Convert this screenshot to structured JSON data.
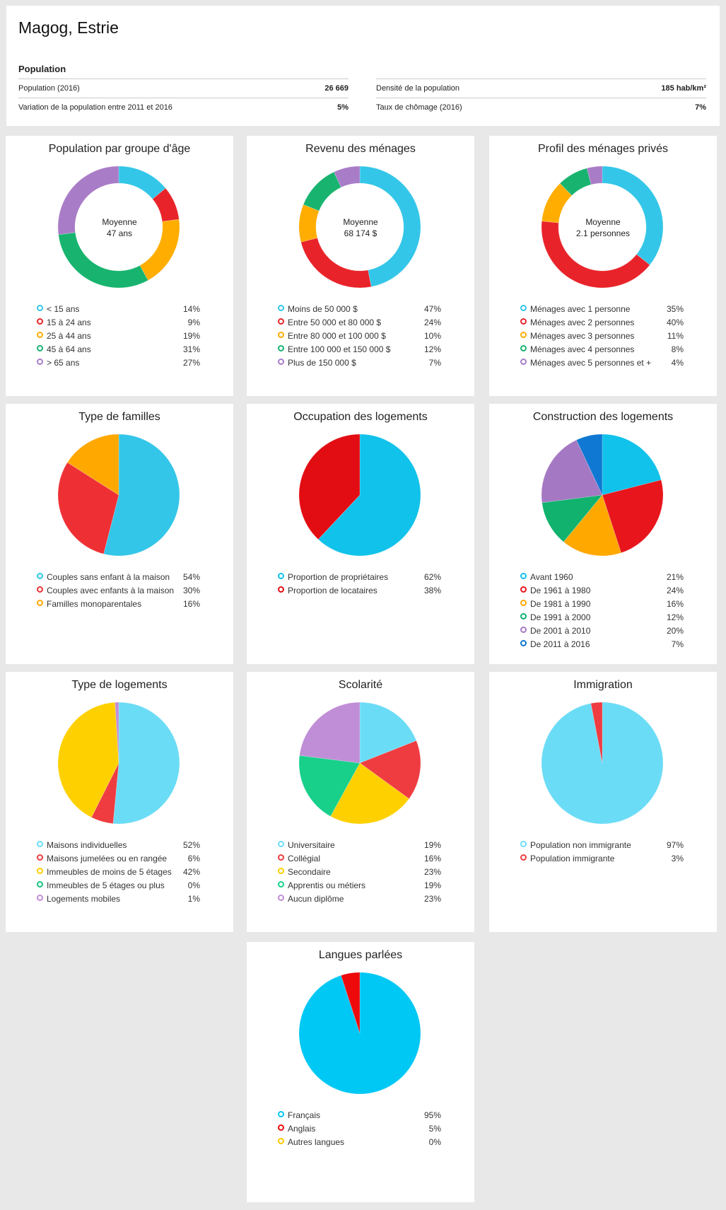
{
  "header": {
    "title": "Magog, Estrie",
    "section": "Population",
    "stats_left": [
      {
        "label": "Population (2016)",
        "value": "26 669"
      },
      {
        "label": "Variation de la population entre 2011 et 2016",
        "value": "5%"
      }
    ],
    "stats_right": [
      {
        "label": "Densité de la population",
        "value": "185 hab/km²"
      },
      {
        "label": "Taux de chômage (2016)",
        "value": "7%"
      }
    ]
  },
  "chart_data": [
    {
      "type": "donut",
      "title": "Population par groupe d'âge",
      "center_label": "Moyenne",
      "center_value": "47 ans",
      "categories": [
        "< 15 ans",
        "15 à 24 ans",
        "25 à 44 ans",
        "45 à 64 ans",
        "> 65 ans"
      ],
      "values": [
        14,
        9,
        19,
        31,
        27
      ],
      "labels": [
        "14%",
        "9%",
        "19%",
        "31%",
        "27%"
      ],
      "colors": [
        "#33c6e8",
        "#e8242a",
        "#ffad00",
        "#18b46f",
        "#a97cc7"
      ]
    },
    {
      "type": "donut",
      "title": "Revenu des ménages",
      "center_label": "Moyenne",
      "center_value": "68 174 $",
      "categories": [
        "Moins de 50 000 $",
        "Entre 50 000 et 80 000 $",
        "Entre 80 000 et 100 000 $",
        "Entre 100 000 et 150 000 $",
        "Plus de 150 000 $"
      ],
      "values": [
        47,
        24,
        10,
        12,
        7
      ],
      "labels": [
        "47%",
        "24%",
        "10%",
        "12%",
        "7%"
      ],
      "colors": [
        "#33c6e8",
        "#e8242a",
        "#ffad00",
        "#18b46f",
        "#a97cc7"
      ]
    },
    {
      "type": "donut",
      "title": "Profil des ménages privés",
      "center_label": "Moyenne",
      "center_value": "2.1 personnes",
      "categories": [
        "Ménages avec 1 personne",
        "Ménages avec 2 personnes",
        "Ménages avec 3 personnes",
        "Ménages avec 4 personnes",
        "Ménages avec 5 personnes et +"
      ],
      "values": [
        35,
        40,
        11,
        8,
        4
      ],
      "labels": [
        "35%",
        "40%",
        "11%",
        "8%",
        "4%"
      ],
      "colors": [
        "#33c6e8",
        "#e8242a",
        "#ffad00",
        "#18b46f",
        "#a97cc7"
      ]
    },
    {
      "type": "pie",
      "title": "Type de familles",
      "categories": [
        "Couples sans enfant à la maison",
        "Couples avec enfants à la maison",
        "Familles monoparentales"
      ],
      "values": [
        54,
        30,
        16
      ],
      "labels": [
        "54%",
        "30%",
        "16%"
      ],
      "colors": [
        "#33c6e8",
        "#ee3035",
        "#ffa800"
      ]
    },
    {
      "type": "pie",
      "title": "Occupation des logements",
      "categories": [
        "Proportion de propriétaires",
        "Proportion de locataires"
      ],
      "values": [
        62,
        38
      ],
      "labels": [
        "62%",
        "38%"
      ],
      "colors": [
        "#11c2ea",
        "#e20d12"
      ]
    },
    {
      "type": "pie",
      "title": "Construction des logements",
      "categories": [
        "Avant 1960",
        "De 1961 à 1980",
        "De 1981 à 1990",
        "De 1991 à 2000",
        "De 2001 à 2010",
        "De 2011 à 2016"
      ],
      "values": [
        21,
        24,
        16,
        12,
        20,
        7
      ],
      "labels": [
        "21%",
        "24%",
        "16%",
        "12%",
        "20%",
        "7%"
      ],
      "colors": [
        "#11c2ea",
        "#e8161c",
        "#ffa800",
        "#10b26e",
        "#a478c2",
        "#0f78d2"
      ]
    },
    {
      "type": "pie",
      "title": "Type de logements",
      "categories": [
        "Maisons individuelles",
        "Maisons jumelées ou en rangée",
        "Immeubles de moins de 5 étages",
        "Immeubles de 5 étages ou plus",
        "Logements mobiles"
      ],
      "values": [
        52,
        6,
        42,
        0,
        1
      ],
      "labels": [
        "52%",
        "6%",
        "42%",
        "0%",
        "1%"
      ],
      "colors": [
        "#6bdcf6",
        "#ef3c40",
        "#ffd000",
        "#18c67e",
        "#c08ed6"
      ]
    },
    {
      "type": "pie",
      "title": "Scolarité",
      "categories": [
        "Universitaire",
        "Collégial",
        "Secondaire",
        "Apprentis ou métiers",
        "Aucun diplôme"
      ],
      "values": [
        19,
        16,
        23,
        19,
        23
      ],
      "labels": [
        "19%",
        "16%",
        "23%",
        "19%",
        "23%"
      ],
      "colors": [
        "#6bdcf6",
        "#ef3c40",
        "#ffd000",
        "#18d08a",
        "#c08ed6"
      ]
    },
    {
      "type": "pie",
      "title": "Immigration",
      "categories": [
        "Population non immigrante",
        "Population immigrante"
      ],
      "values": [
        97,
        3
      ],
      "labels": [
        "97%",
        "3%"
      ],
      "colors": [
        "#6bdcf6",
        "#ef3c40"
      ]
    },
    {
      "type": "pie",
      "title": "Langues parlées",
      "categories": [
        "Français",
        "Anglais",
        "Autres langues"
      ],
      "values": [
        95,
        5,
        0
      ],
      "labels": [
        "95%",
        "5%",
        "0%"
      ],
      "colors": [
        "#00c8f5",
        "#ee0a0a",
        "#ffc800"
      ]
    }
  ]
}
